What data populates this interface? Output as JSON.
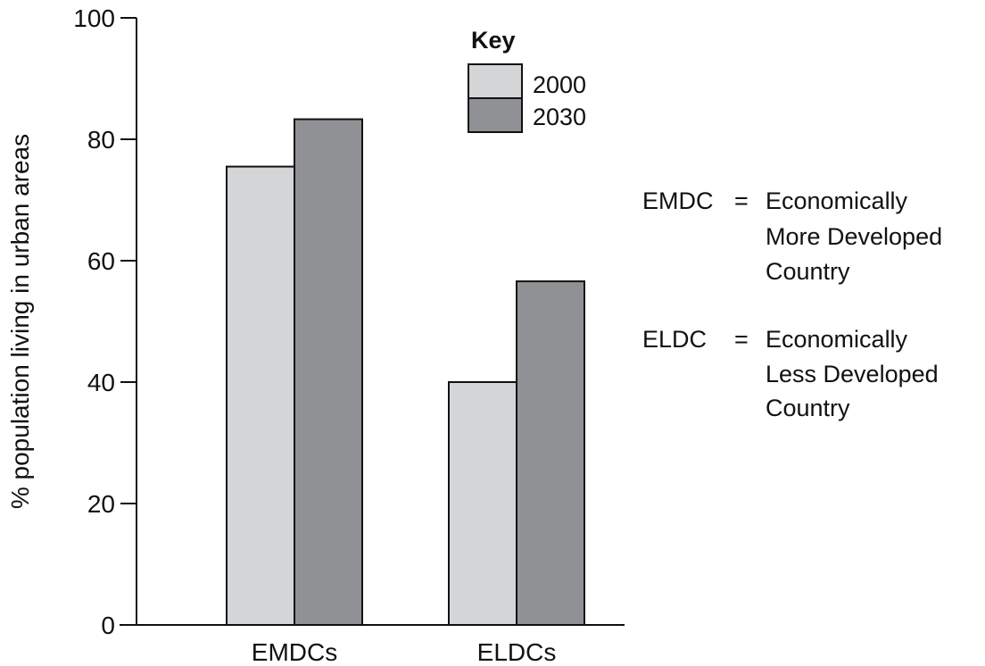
{
  "chart_data": {
    "type": "bar",
    "categories": [
      "EMDCs",
      "ELDCs"
    ],
    "series": [
      {
        "name": "2000",
        "values": [
          75.5,
          40
        ],
        "color": "#d4d5d7"
      },
      {
        "name": "2030",
        "values": [
          83.3,
          56.6
        ],
        "color": "#909194"
      }
    ],
    "ylabel": "% population living in urban areas",
    "xlabel": "",
    "ylim": [
      0,
      100
    ],
    "yticks": [
      0,
      20,
      40,
      60,
      80,
      100
    ],
    "grid": false,
    "legend": {
      "title": "Key",
      "placement": "top-right"
    }
  },
  "definitions": [
    {
      "abbr": "EMDC",
      "eq": "=",
      "lines": [
        "Economically",
        "More Developed",
        "Country"
      ]
    },
    {
      "abbr": "ELDC",
      "eq": "=",
      "lines": [
        "Economically",
        "Less Developed",
        "Country"
      ]
    }
  ]
}
